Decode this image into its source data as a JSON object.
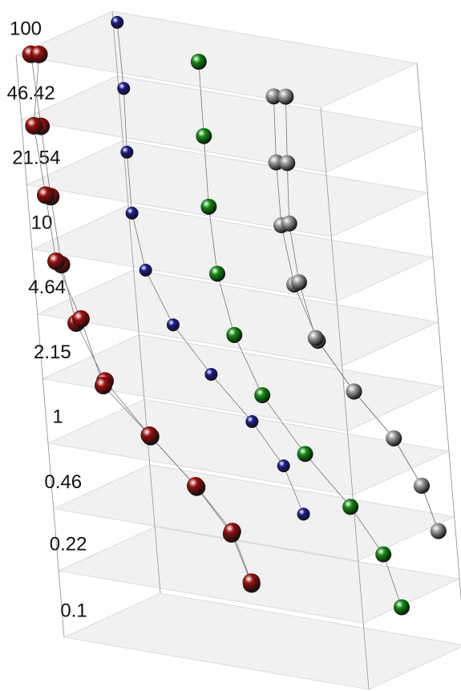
{
  "chart_data": {
    "type": "scatter3d",
    "zscale": "log",
    "xlim": [
      0,
      1
    ],
    "ylim": [
      0,
      1
    ],
    "zlim": [
      0.1,
      100
    ],
    "zticks": [
      0.1,
      0.22,
      0.46,
      1,
      2.15,
      4.64,
      10,
      21.54,
      46.42,
      100
    ],
    "series": [
      {
        "color": "#9a0f0f",
        "values": [
          0.1,
          0.22,
          0.46,
          1,
          2.15,
          4.64,
          10,
          21.54,
          46.42,
          100
        ],
        "x": [
          0.17,
          0.22,
          0.23,
          0.21,
          0.16,
          0.14,
          0.15,
          0.12,
          0.08,
          0.03
        ],
        "y": [
          1.41,
          1.1,
          0.76,
          0.4,
          0.14,
          -0.04,
          -0.17,
          -0.13,
          -0.05,
          0.06
        ]
      },
      {
        "color": "#9a0f0f",
        "values": [
          0.1,
          0.22,
          0.46,
          1,
          2.15,
          4.64,
          10,
          21.54,
          46.42,
          100
        ],
        "x": [
          0.16,
          0.21,
          0.22,
          0.2,
          0.18,
          0.13,
          0.12,
          0.1,
          0.06,
          0.05
        ],
        "y": [
          1.44,
          1.14,
          0.78,
          0.42,
          0.06,
          0.04,
          -0.13,
          -0.12,
          -0.06,
          0.08
        ]
      },
      {
        "color": "#1c1c8e",
        "values": [
          0.1,
          0.22,
          0.46,
          1,
          2.15,
          4.64,
          10,
          21.54,
          46.42,
          100
        ],
        "x": [
          -0.07,
          -0.01,
          0.02,
          0.03,
          0.03,
          0.03,
          0.05,
          0.07,
          0.08,
          0.07
        ],
        "y": [
          2.71,
          2.37,
          2.0,
          1.6,
          1.26,
          1.03,
          0.88,
          0.82,
          0.81,
          0.83
        ]
      },
      {
        "color": "#128a12",
        "values": [
          0.1,
          0.22,
          0.46,
          1,
          2.15,
          4.64,
          10,
          21.54,
          46.42,
          100
        ],
        "x": [
          0.65,
          0.69,
          0.7,
          0.67,
          0.61,
          0.58,
          0.57,
          0.55,
          0.52,
          0.47
        ],
        "y": [
          1.45,
          1.19,
          0.87,
          0.55,
          0.35,
          0.21,
          0.12,
          0.15,
          0.25,
          0.41
        ]
      },
      {
        "color": "#9a9a9a",
        "values": [
          0.22,
          0.46,
          1,
          2.15,
          4.64,
          10,
          21.54,
          46.42,
          100
        ],
        "x": [
          0.7,
          0.76,
          0.8,
          0.81,
          0.81,
          0.81,
          0.82,
          0.83,
          0.83
        ],
        "y": [
          1.73,
          1.42,
          1.06,
          0.67,
          0.35,
          0.16,
          0.05,
          0.02,
          0.05
        ]
      },
      {
        "color": "#9a9a9a",
        "values": [
          0.22,
          0.46,
          1,
          2.15,
          4.64,
          10,
          21.54,
          46.42,
          100
        ],
        "x": [
          0.7,
          0.76,
          0.8,
          0.81,
          0.79,
          0.81,
          0.83,
          0.86,
          0.86
        ],
        "y": [
          1.73,
          1.42,
          1.06,
          0.67,
          0.39,
          0.21,
          0.1,
          0.04,
          0.08
        ]
      }
    ]
  }
}
